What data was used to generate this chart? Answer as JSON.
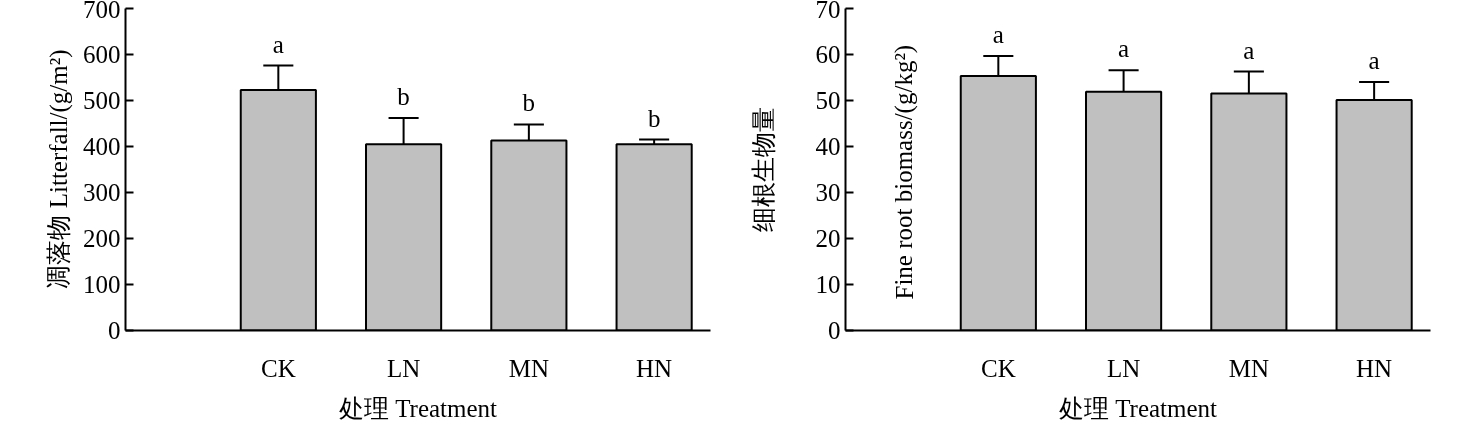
{
  "chart_data": [
    {
      "type": "bar",
      "categories": [
        "CK",
        "LN",
        "MN",
        "HN"
      ],
      "values": [
        523,
        405,
        413,
        405
      ],
      "errors": [
        53,
        57,
        35,
        10
      ],
      "color": "#c0c0c0",
      "ylim": [
        0,
        700
      ],
      "yticks": [
        0,
        100,
        200,
        300,
        400,
        500,
        600,
        700
      ],
      "xlabel": "处理 Treatment",
      "ylabel": "凋落物 Litterfall/(g/m²)",
      "grid": false,
      "annotations": [
        {
          "text": "a",
          "x": "CK",
          "y": 576
        },
        {
          "text": "b",
          "x": "LN",
          "y": 462
        },
        {
          "text": "b",
          "x": "MN",
          "y": 448
        },
        {
          "text": "b",
          "x": "HN",
          "y": 415
        }
      ]
    },
    {
      "type": "bar",
      "categories": [
        "CK",
        "LN",
        "MN",
        "HN"
      ],
      "values": [
        55.3,
        51.9,
        51.5,
        50.1
      ],
      "errors": [
        4.4,
        4.7,
        4.8,
        3.9
      ],
      "color": "#c0c0c0",
      "ylim": [
        0,
        70
      ],
      "yticks": [
        0,
        10,
        20,
        30,
        40,
        50,
        60,
        70
      ],
      "xlabel": "处理 Treatment",
      "ylabel": "细根生物量",
      "y2label": "Fine root biomass/(g/kg²)",
      "grid": false,
      "annotations": [
        {
          "text": "a",
          "x": "CK",
          "y": 59.7
        },
        {
          "text": "a",
          "x": "LN",
          "y": 56.6
        },
        {
          "text": "a",
          "x": "MN",
          "y": 56.3
        },
        {
          "text": "a",
          "x": "HN",
          "y": 54.0
        }
      ]
    }
  ]
}
